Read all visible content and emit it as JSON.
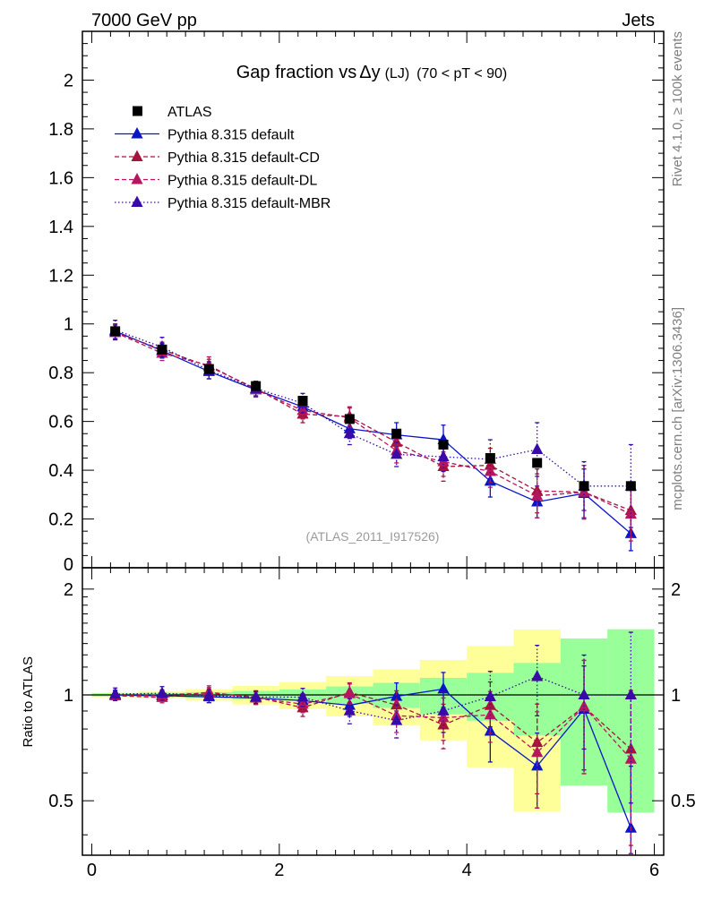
{
  "header": {
    "left": "7000 GeV pp",
    "right": "Jets"
  },
  "side_labels": {
    "rivet": "Rivet 4.1.0, ≥ 100k events",
    "mcplots": "mcplots.cern.ch [arXiv:1306.3436]"
  },
  "chart_data": {
    "type": "line",
    "title_main": "Gap fraction vs",
    "title_delta": "Δy",
    "title_lj": "(LJ)",
    "title_range": "(70 < pT <  90)",
    "watermark": "(ATLAS_2011_I917526)",
    "xlabel": "",
    "ylabel": "",
    "ratio_ylabel": "Ratio to ATLAS",
    "xlim": [
      -0.1,
      6.1
    ],
    "ylim": [
      0,
      2.2
    ],
    "ratio_ylim": [
      0.35,
      2.3
    ],
    "x_ticks": [
      "0",
      "2",
      "4",
      "6"
    ],
    "y_ticks": [
      "0",
      "0.2",
      "0.4",
      "0.6",
      "0.8",
      "1",
      "1.2",
      "1.4",
      "1.6",
      "1.8",
      "2"
    ],
    "ratio_ticks": [
      "0.5",
      "1",
      "2"
    ],
    "legend_position": "top-left",
    "x": [
      0.25,
      0.75,
      1.25,
      1.75,
      2.25,
      2.75,
      3.25,
      3.75,
      4.25,
      4.75,
      5.25,
      5.75
    ],
    "data": {
      "name": "ATLAS",
      "values": [
        0.97,
        0.895,
        0.815,
        0.745,
        0.685,
        0.61,
        0.55,
        0.505,
        0.45,
        0.43,
        0.335,
        0.335
      ],
      "band_inner": [
        0.01,
        0.012,
        0.015,
        0.02,
        0.025,
        0.035,
        0.045,
        0.06,
        0.07,
        0.1,
        0.15,
        0.18
      ],
      "band_outer": [
        0.015,
        0.02,
        0.03,
        0.045,
        0.06,
        0.08,
        0.1,
        0.13,
        0.17,
        0.23,
        0.35,
        0.4
      ]
    },
    "series": [
      {
        "name": "Pythia 8.315 default",
        "color": "#0a15c8",
        "dash": "",
        "values": [
          0.97,
          0.89,
          0.805,
          0.73,
          0.66,
          0.57,
          0.545,
          0.525,
          0.355,
          0.27,
          0.305,
          0.14
        ],
        "errors": [
          0.03,
          0.03,
          0.03,
          0.03,
          0.03,
          0.04,
          0.05,
          0.06,
          0.065,
          0.065,
          0.1,
          0.07
        ]
      },
      {
        "name": "Pythia 8.315 default-CD",
        "color": "#a5143c",
        "dash": "5,3",
        "values": [
          0.965,
          0.895,
          0.825,
          0.735,
          0.63,
          0.62,
          0.515,
          0.415,
          0.42,
          0.315,
          0.31,
          0.235
        ],
        "errors": [
          0.03,
          0.03,
          0.03,
          0.03,
          0.035,
          0.04,
          0.05,
          0.06,
          0.07,
          0.09,
          0.11,
          0.11
        ]
      },
      {
        "name": "Pythia 8.315 default-DL",
        "color": "#b41660",
        "dash": "5,3",
        "values": [
          0.965,
          0.88,
          0.83,
          0.73,
          0.645,
          0.615,
          0.48,
          0.435,
          0.395,
          0.295,
          0.31,
          0.22
        ],
        "errors": [
          0.03,
          0.03,
          0.035,
          0.03,
          0.035,
          0.04,
          0.05,
          0.06,
          0.065,
          0.09,
          0.11,
          0.11
        ]
      },
      {
        "name": "Pythia 8.315 default-MBR",
        "color": "#3a0aa8",
        "dash": "1.5,2.5",
        "values": [
          0.975,
          0.905,
          0.81,
          0.735,
          0.675,
          0.55,
          0.465,
          0.455,
          0.445,
          0.485,
          0.335,
          0.335
        ],
        "errors": [
          0.04,
          0.04,
          0.035,
          0.03,
          0.04,
          0.045,
          0.05,
          0.06,
          0.08,
          0.11,
          0.1,
          0.17
        ]
      }
    ]
  }
}
